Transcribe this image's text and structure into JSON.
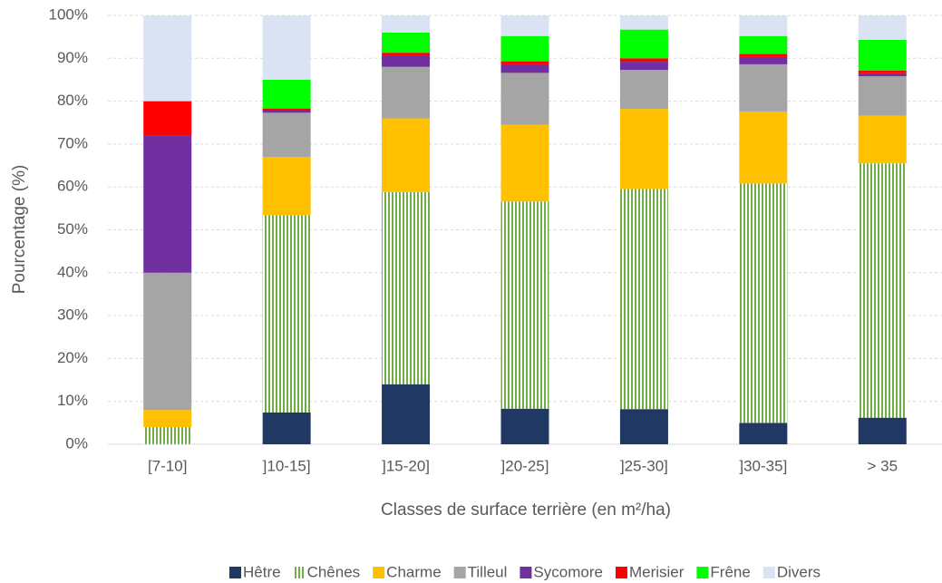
{
  "chart_data": {
    "type": "stacked-bar",
    "x_label": "Classes de surface terrière (en m²/ha)",
    "y_label": "Pourcentage (%)",
    "categories": [
      "[7-10]",
      "]10-15]",
      "]15-20]",
      "]20-25]",
      "]25-30]",
      "]30-35]",
      "> 35"
    ],
    "series": [
      {
        "name": "Hêtre",
        "color": "#203864",
        "values": [
          0,
          7.4,
          14,
          8.3,
          8.2,
          5,
          6.2
        ]
      },
      {
        "name": "Chênes",
        "color": "#70ad47",
        "pattern": "vertical-stripes",
        "values": [
          4,
          46,
          44.8,
          48.3,
          51.3,
          55.8,
          59.3
        ]
      },
      {
        "name": "Charme",
        "color": "#ffc000",
        "values": [
          4,
          13.6,
          17.2,
          17.9,
          18.7,
          16.8,
          11.1
        ]
      },
      {
        "name": "Tilleul",
        "color": "#a5a5a5",
        "values": [
          32,
          10.3,
          12,
          12.1,
          9.1,
          11,
          9.2
        ]
      },
      {
        "name": "Sycomore",
        "color": "#7030a0",
        "values": [
          32,
          0.5,
          2.5,
          2,
          1.9,
          1.7,
          0.7
        ]
      },
      {
        "name": "Merisier",
        "color": "#ff0000",
        "values": [
          8,
          0.5,
          0.8,
          0.7,
          0.8,
          0.7,
          0.6
        ]
      },
      {
        "name": "Frêne",
        "color": "#00ff00",
        "values": [
          0,
          6.7,
          4.7,
          5.9,
          6.7,
          4.2,
          7.2
        ]
      },
      {
        "name": "Divers",
        "color": "#dae3f3",
        "values": [
          20,
          15,
          4,
          4.8,
          3.3,
          4.8,
          5.7
        ]
      }
    ],
    "ylim": [
      0,
      100
    ],
    "yticks": [
      {
        "value": 0,
        "label": "0%"
      },
      {
        "value": 10,
        "label": "10%"
      },
      {
        "value": 20,
        "label": "20%"
      },
      {
        "value": 30,
        "label": "30%"
      },
      {
        "value": 40,
        "label": "40%"
      },
      {
        "value": 50,
        "label": "50%"
      },
      {
        "value": 60,
        "label": "60%"
      },
      {
        "value": 70,
        "label": "70%"
      },
      {
        "value": 80,
        "label": "80%"
      },
      {
        "value": 90,
        "label": "90%"
      },
      {
        "value": 100,
        "label": "100%"
      }
    ],
    "grid": true,
    "legend": "bottom"
  }
}
